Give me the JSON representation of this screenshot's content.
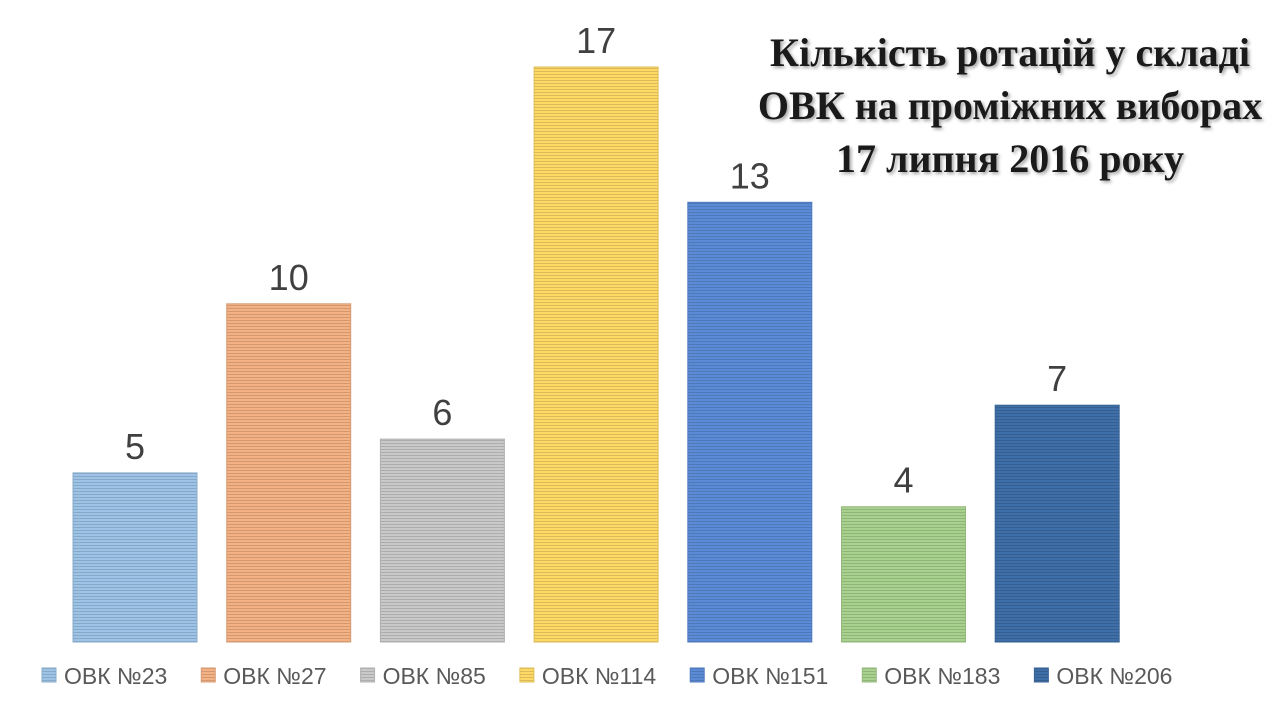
{
  "chart_data": {
    "type": "bar",
    "title_lines": [
      "Кількість ротацій у складі",
      "ОВК на проміжних виборах",
      "17 липня 2016 року"
    ],
    "categories": [
      "ОВК №23",
      "ОВК №27",
      "ОВК №85",
      "ОВК №114",
      "ОВК №151",
      "ОВК №183",
      "ОВК №206"
    ],
    "values": [
      5,
      10,
      6,
      17,
      13,
      4,
      7
    ],
    "colors": [
      "#9dc3e6",
      "#f4b183",
      "#c9c9c9",
      "#ffd966",
      "#5b8bd6",
      "#a9d18e",
      "#3f6fa8"
    ],
    "ylim": [
      0,
      17
    ],
    "grid": false,
    "legend_position": "bottom",
    "data_labels": true
  }
}
